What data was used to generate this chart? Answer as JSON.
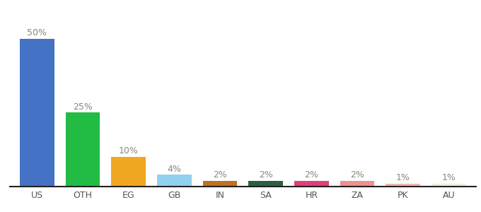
{
  "categories": [
    "US",
    "OTH",
    "EG",
    "GB",
    "IN",
    "SA",
    "HR",
    "ZA",
    "PK",
    "AU"
  ],
  "values": [
    50,
    25,
    10,
    4,
    2,
    2,
    2,
    2,
    1,
    1
  ],
  "labels": [
    "50%",
    "25%",
    "10%",
    "4%",
    "2%",
    "2%",
    "2%",
    "2%",
    "1%",
    "1%"
  ],
  "bar_colors": [
    "#4472c4",
    "#22bb44",
    "#f0a820",
    "#92d0f0",
    "#c07020",
    "#2d6040",
    "#e0407a",
    "#f09090",
    "#f0b8a8",
    "#f0f0d8"
  ],
  "background_color": "#ffffff",
  "ylim": [
    0,
    58
  ],
  "bar_width": 0.75,
  "label_fontsize": 9,
  "tick_fontsize": 9,
  "label_color": "#888877"
}
